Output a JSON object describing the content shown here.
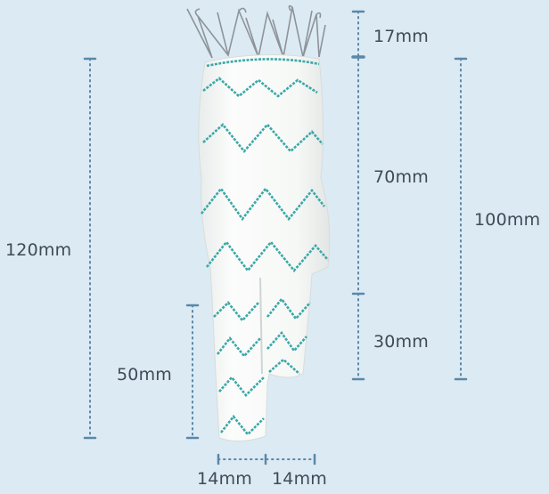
{
  "colors": {
    "background": "#dceaf4",
    "dimension_line": "#5a88a8",
    "label_text": "#3f4a55",
    "fabric": "#f7f8f6",
    "stitch": "#3aa8a8",
    "wire": "#8d9398"
  },
  "image": {
    "subject": "bifurcated-stent-graft"
  },
  "dimensions": {
    "top_crown": "17mm",
    "main_body": "70mm",
    "short_leg": "30mm",
    "overall_short": "100mm",
    "overall_long": "120mm",
    "long_leg": "50mm",
    "leg_diameter_left": "14mm",
    "leg_diameter_right": "14mm"
  }
}
